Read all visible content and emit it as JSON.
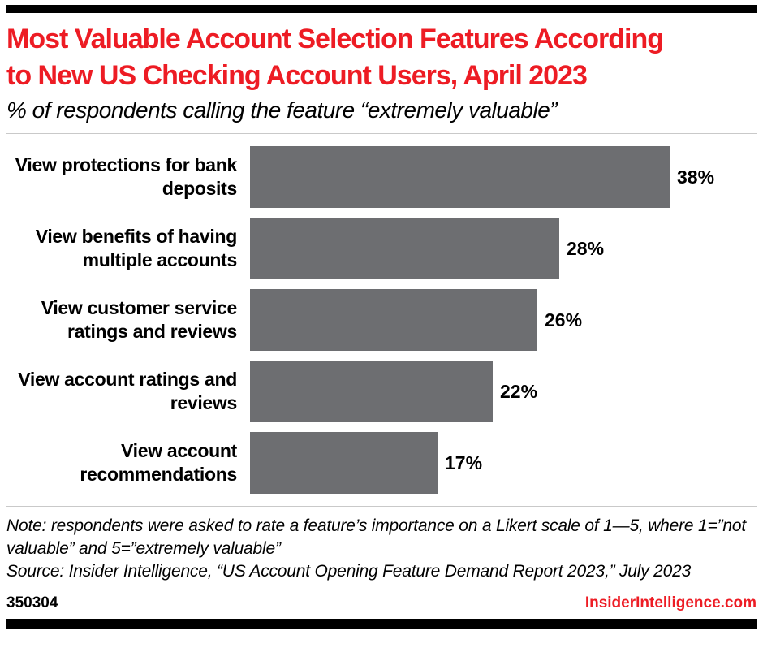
{
  "colors": {
    "accent": "#ed1c24",
    "bar": "#6d6e71"
  },
  "header": {
    "title_lines": [
      "Most Valuable Account Selection Features According",
      "to New US Checking Account Users, April 2023"
    ]
  },
  "chart_data": {
    "type": "bar",
    "orientation": "horizontal",
    "title": "Most Valuable Account Selection Features According to New US Checking Account Users, April 2023",
    "subtitle": "% of respondents calling the feature “extremely valuable”",
    "categories": [
      "View protections for bank deposits",
      "View benefits of having multiple accounts",
      "View customer service ratings and reviews",
      "View account ratings and reviews",
      "View account recommendations"
    ],
    "values": [
      38,
      28,
      26,
      22,
      17
    ],
    "value_labels": [
      "38%",
      "28%",
      "26%",
      "22%",
      "17%"
    ],
    "unit": "%",
    "xlim": [
      0,
      40
    ],
    "grid": false,
    "legend": false,
    "bar_color": "#6d6e71"
  },
  "notes": {
    "note": "Note: respondents were asked to rate a feature’s importance on a Likert scale of 1—5, where 1=”not valuable” and 5=”extremely valuable”",
    "source": "Source: Insider Intelligence, “US Account Opening Feature Demand Report 2023,” July 2023"
  },
  "footer": {
    "chart_id": "350304",
    "brand": "InsiderIntelligence.com"
  }
}
